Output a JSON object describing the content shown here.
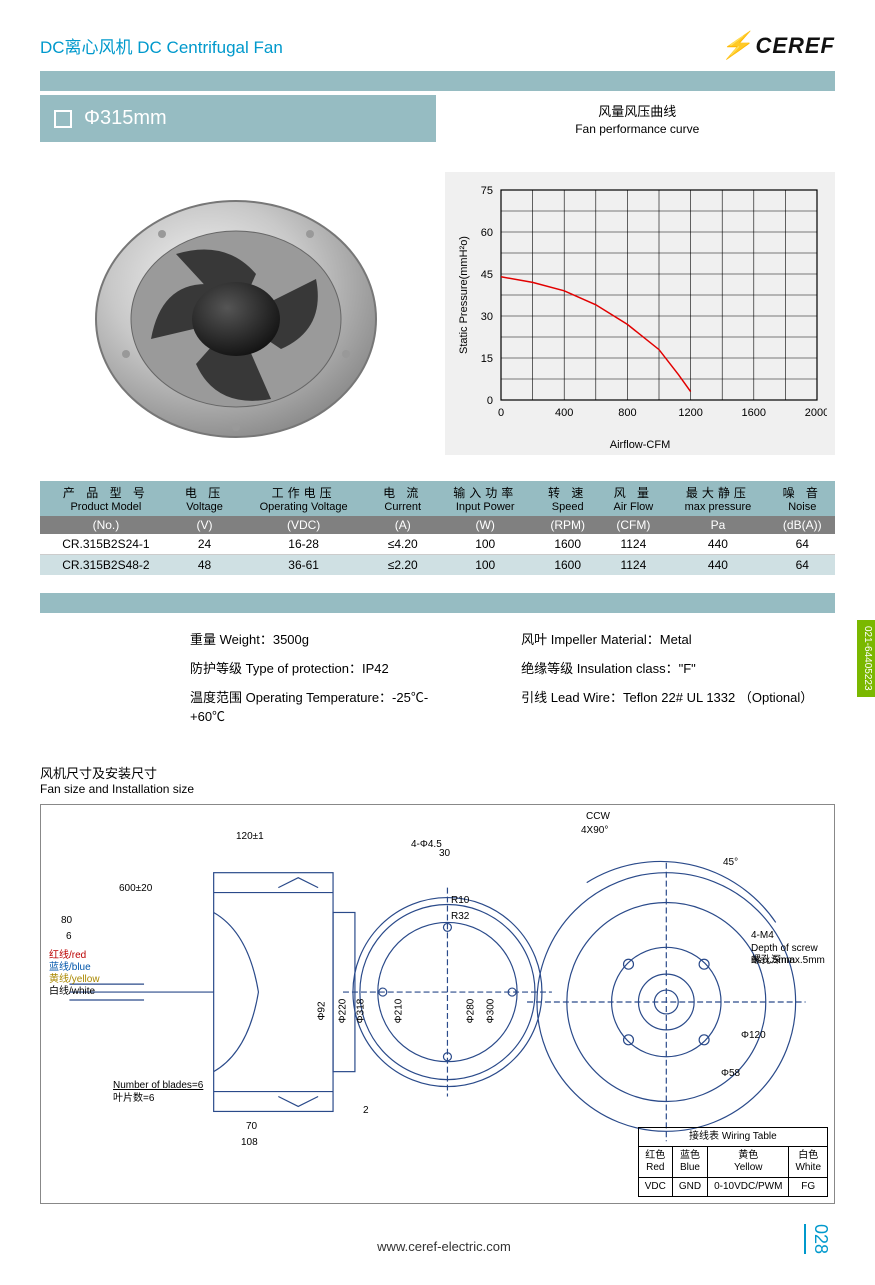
{
  "header": {
    "title": "DC离心风机  DC Centrifugal Fan",
    "logo_text": "CEREF"
  },
  "subheader": {
    "size_label": "Φ315mm",
    "curve_cn": "风量风压曲线",
    "curve_en": "Fan performance curve"
  },
  "chart": {
    "type": "line",
    "y_label": "Static Pressure(mmH²o)",
    "x_label": "Airflow-CFM",
    "xlim": [
      0,
      2000
    ],
    "ylim": [
      0,
      75
    ],
    "x_ticks": [
      0,
      400,
      800,
      1200,
      1600,
      2000
    ],
    "y_ticks": [
      0,
      15,
      30,
      45,
      60,
      75
    ],
    "grid_color": "#000000",
    "bg_color": "#f0f0f0",
    "line_color": "#e20000",
    "line_width": 1.5,
    "points": [
      [
        0,
        44
      ],
      [
        200,
        42
      ],
      [
        400,
        39
      ],
      [
        600,
        34
      ],
      [
        800,
        27
      ],
      [
        1000,
        18
      ],
      [
        1124,
        9
      ],
      [
        1200,
        3
      ]
    ]
  },
  "spec_table": {
    "headers": [
      {
        "cn": "产 品 型 号",
        "en": "Product Model"
      },
      {
        "cn": "电 压",
        "en": "Voltage"
      },
      {
        "cn": "工作电压",
        "en": "Operating Voltage"
      },
      {
        "cn": "电 流",
        "en": "Current"
      },
      {
        "cn": "输入功率",
        "en": "Input Power"
      },
      {
        "cn": "转 速",
        "en": "Speed"
      },
      {
        "cn": "风 量",
        "en": "Air Flow"
      },
      {
        "cn": "最大静压",
        "en": "max pressure"
      },
      {
        "cn": "噪 音",
        "en": "Noise"
      }
    ],
    "units": [
      "(No.)",
      "(V)",
      "(VDC)",
      "(A)",
      "(W)",
      "(RPM)",
      "(CFM)",
      "Pa",
      "(dB(A))"
    ],
    "rows": [
      [
        "CR.315B2S24-1",
        "24",
        "16-28",
        "≤4.20",
        "100",
        "1600",
        "1124",
        "440",
        "64"
      ],
      [
        "CR.315B2S48-2",
        "48",
        "36-61",
        "≤2.20",
        "100",
        "1600",
        "1124",
        "440",
        "64"
      ]
    ]
  },
  "info": {
    "left": [
      "重量 Weight：3500g",
      "防护等级 Type of protection：IP42",
      "温度范围 Operating Temperature：-25℃-+60℃"
    ],
    "right": [
      "风叶 Impeller Material：Metal",
      "绝缘等级 Insulation class：\"F\"",
      "引线 Lead Wire：Teflon 22# UL  1332 （Optional）"
    ]
  },
  "drawing_section": {
    "title_cn": "风机尺寸及安装尺寸",
    "title_en": "Fan size and Installation size",
    "labels": {
      "ccw": "CCW",
      "angle90": "4X90°",
      "angle45": "45°",
      "dim_120": "120±1",
      "dim_600": "600±20",
      "dim_80": "80",
      "dim_6": "6",
      "dim_30": "30",
      "dim_r10": "R10",
      "dim_r32": "R32",
      "dim_4_45": "4-Φ4.5",
      "dim_92": "Φ92",
      "dim_220": "Φ220",
      "dim_318": "Φ318",
      "dim_210": "Φ210",
      "dim_280": "Φ280",
      "dim_300": "Φ300",
      "dim_120c": "Φ120",
      "dim_58": "Φ58",
      "m4": "4-M4",
      "depth_en": "Depth of screw max.5mm",
      "depth_cn": "螺孔深max.5mm",
      "blades_en": "Number of blades=6",
      "blades_cn": "叶片数=6",
      "dim_70": "70",
      "dim_108": "108",
      "dim_2": "2",
      "wire_red_cn": "红线/red",
      "wire_blue_cn": "蓝线/blue",
      "wire_yellow_cn": "黄线/yellow",
      "wire_white_cn": "白线/white"
    }
  },
  "wiring": {
    "title": "接线表 Wiring Table",
    "headers": [
      {
        "cn": "红色",
        "en": "Red"
      },
      {
        "cn": "蓝色",
        "en": "Blue"
      },
      {
        "cn": "黄色",
        "en": "Yellow"
      },
      {
        "cn": "白色",
        "en": "White"
      }
    ],
    "row": [
      "VDC",
      "GND",
      "0-10VDC/PWM",
      "FG"
    ]
  },
  "side_tab": "021-64405223",
  "footer": {
    "url": "www.ceref-electric.com",
    "page": "028"
  }
}
